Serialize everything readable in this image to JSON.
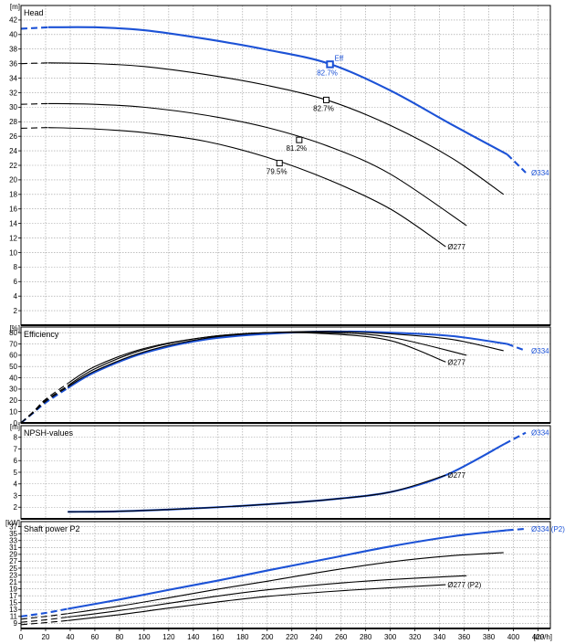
{
  "chart_data": {
    "type": "line",
    "x_unit": "[m³/h]",
    "x_ticks": [
      0,
      20,
      40,
      60,
      80,
      100,
      120,
      140,
      160,
      180,
      200,
      220,
      240,
      260,
      280,
      300,
      320,
      340,
      360,
      380,
      400,
      420
    ],
    "xlim": [
      0,
      430
    ],
    "colors": {
      "highlight": "#1c52d6",
      "normal": "#000000",
      "grid": "#9a9a9a"
    },
    "panels": [
      {
        "id": "head",
        "title": "Head",
        "unit": "[m]",
        "ylim": [
          0,
          44
        ],
        "y_ticks": [
          2,
          4,
          6,
          8,
          10,
          12,
          14,
          16,
          18,
          20,
          22,
          24,
          26,
          28,
          30,
          32,
          34,
          36,
          38,
          40,
          42
        ],
        "series": [
          {
            "name": "Ø334",
            "highlight": true,
            "dashed_until": 22,
            "dashed_after": 395,
            "x": [
              0,
              22,
              60,
              100,
              150,
              200,
              250,
              300,
              350,
              395,
              410
            ],
            "y": [
              40.8,
              41.0,
              41.0,
              40.6,
              39.4,
              37.9,
              36.0,
              32.3,
              27.6,
              23.5,
              21.0
            ]
          },
          {
            "name": "",
            "highlight": false,
            "dashed_until": 22,
            "x": [
              0,
              22,
              60,
              100,
              150,
              200,
              250,
              300,
              350,
              392
            ],
            "y": [
              36.0,
              36.1,
              36.0,
              35.6,
              34.5,
              33.0,
              30.9,
              27.5,
              23.0,
              18.0
            ]
          },
          {
            "name": "",
            "highlight": false,
            "dashed_until": 22,
            "x": [
              0,
              22,
              60,
              100,
              150,
              200,
              250,
              300,
              362
            ],
            "y": [
              30.4,
              30.5,
              30.4,
              30.0,
              28.9,
              27.2,
              24.6,
              20.8,
              13.7
            ]
          },
          {
            "name": "Ø277",
            "highlight": false,
            "dashed_until": 22,
            "x": [
              0,
              22,
              60,
              100,
              150,
              200,
              250,
              300,
              345
            ],
            "y": [
              27.1,
              27.2,
              27.0,
              26.5,
              25.3,
              23.1,
              20.0,
              16.0,
              10.8
            ]
          }
        ],
        "markers": [
          {
            "x": 251,
            "y": 35.9,
            "label": "82.7%",
            "highlight": true,
            "tag": "Eff"
          },
          {
            "x": 248,
            "y": 31.0,
            "label": "82.7%",
            "highlight": false
          },
          {
            "x": 226,
            "y": 25.5,
            "label": "81.2%",
            "highlight": false
          },
          {
            "x": 210,
            "y": 22.3,
            "label": "79.5%",
            "highlight": false
          }
        ]
      },
      {
        "id": "efficiency",
        "title": "Efficiency",
        "unit": "[%]",
        "ylim": [
          0,
          85
        ],
        "y_ticks": [
          0,
          10,
          20,
          30,
          40,
          50,
          60,
          70,
          80
        ],
        "series": [
          {
            "name": "Ø334",
            "highlight": true,
            "dashed_until": 38,
            "dashed_after": 395,
            "x": [
              0,
              10,
              20,
              38,
              60,
              100,
              150,
              200,
              250,
              300,
              350,
              395,
              410
            ],
            "y": [
              0,
              9,
              18,
              31,
              45,
              62,
              74,
              79,
              81,
              80,
              77,
              70,
              64
            ]
          },
          {
            "name": "",
            "highlight": false,
            "dashed_until": 38,
            "x": [
              0,
              10,
              20,
              38,
              60,
              100,
              150,
              200,
              250,
              300,
              350,
              392
            ],
            "y": [
              0,
              9,
              19,
              32,
              46,
              63,
              75,
              80,
              81,
              79,
              74,
              64
            ]
          },
          {
            "name": "",
            "highlight": false,
            "dashed_until": 38,
            "x": [
              0,
              10,
              20,
              38,
              60,
              100,
              150,
              200,
              250,
              300,
              362
            ],
            "y": [
              0,
              10,
              20,
              33,
              48,
              65,
              76,
              80,
              80,
              76,
              60
            ]
          },
          {
            "name": "Ø277",
            "highlight": false,
            "dashed_until": 38,
            "x": [
              0,
              10,
              20,
              38,
              60,
              100,
              150,
              200,
              250,
              300,
              345
            ],
            "y": [
              0,
              10,
              21,
              35,
              50,
              66,
              76,
              80,
              79,
              73,
              54
            ]
          }
        ],
        "markers": []
      },
      {
        "id": "npsh",
        "title": "NPSH-values",
        "unit": "[m]",
        "ylim": [
          1,
          9
        ],
        "y_ticks": [
          2,
          3,
          4,
          5,
          6,
          7,
          8
        ],
        "series": [
          {
            "name": "Ø334",
            "highlight": true,
            "dashed_after": 393,
            "x": [
              38,
              80,
              120,
              160,
              200,
              250,
              300,
              345,
              393,
              410
            ],
            "y": [
              1.6,
              1.65,
              1.8,
              2.0,
              2.25,
              2.65,
              3.3,
              4.75,
              7.45,
              8.4
            ]
          },
          {
            "name": "Ø277",
            "highlight": false,
            "x": [
              38,
              80,
              120,
              160,
              200,
              250,
              300,
              345
            ],
            "y": [
              1.6,
              1.65,
              1.8,
              2.0,
              2.25,
              2.65,
              3.3,
              4.75
            ]
          }
        ],
        "markers": []
      },
      {
        "id": "power",
        "title": "Shaft power P2",
        "unit": "[kW]",
        "ylim": [
          7.5,
          38.5
        ],
        "y_ticks": [
          9,
          11,
          13,
          15,
          17,
          19,
          21,
          23,
          25,
          27,
          29,
          31,
          33,
          35,
          37
        ],
        "series": [
          {
            "name": "Ø334 (P2)",
            "highlight": true,
            "dashed_until": 38,
            "dashed_after": 395,
            "x": [
              0,
              20,
              38,
              80,
              120,
              160,
              200,
              250,
              300,
              350,
              395,
              410
            ],
            "y": [
              11.0,
              12.0,
              13.2,
              15.9,
              18.7,
              21.4,
              24.3,
              27.8,
              31.3,
              34.2,
              36.0,
              36.4
            ]
          },
          {
            "name": "",
            "highlight": false,
            "dashed_until": 38,
            "x": [
              0,
              20,
              38,
              80,
              120,
              160,
              200,
              250,
              300,
              350,
              392
            ],
            "y": [
              10.2,
              11.0,
              11.8,
              14.0,
              16.4,
              18.9,
              21.2,
              24.2,
              26.8,
              28.6,
              29.5
            ]
          },
          {
            "name": "",
            "highlight": false,
            "dashed_until": 38,
            "x": [
              0,
              20,
              38,
              80,
              120,
              160,
              200,
              250,
              300,
              362
            ],
            "y": [
              9.3,
              10.0,
              10.8,
              12.7,
              14.8,
              16.9,
              18.7,
              20.4,
              21.7,
              22.8
            ]
          },
          {
            "name": "Ø277 (P2)",
            "highlight": false,
            "dashed_until": 38,
            "x": [
              0,
              20,
              38,
              80,
              120,
              160,
              200,
              250,
              300,
              345
            ],
            "y": [
              8.6,
              9.2,
              9.8,
              11.5,
              13.4,
              15.2,
              16.8,
              18.2,
              19.3,
              20.2
            ]
          }
        ],
        "markers": []
      }
    ]
  }
}
